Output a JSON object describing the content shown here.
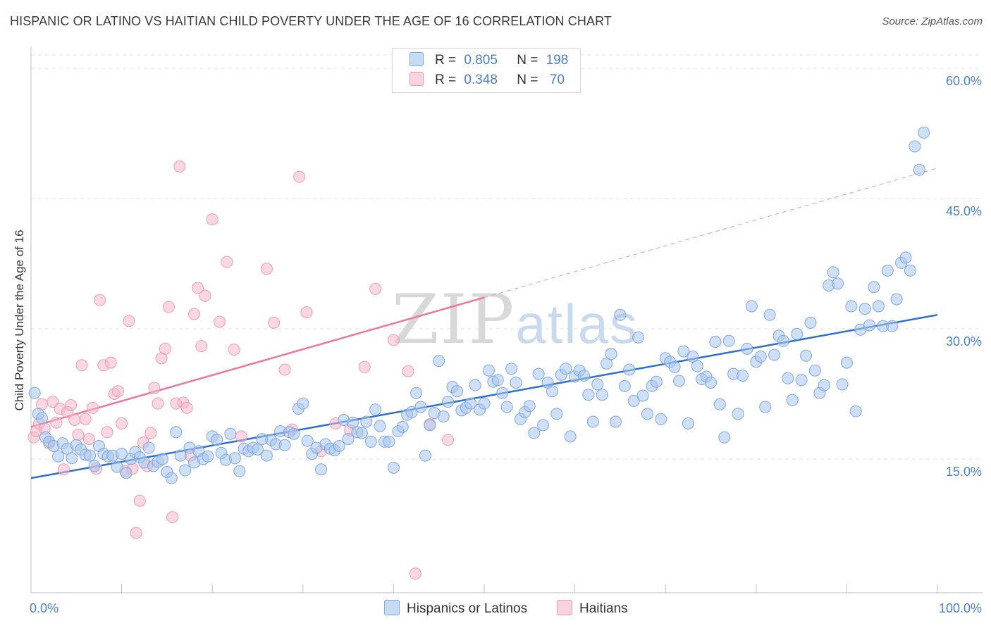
{
  "header": {
    "title": "HISPANIC OR LATINO VS HAITIAN CHILD POVERTY UNDER THE AGE OF 16 CORRELATION CHART",
    "source": "Source: ZipAtlas.com"
  },
  "watermark": {
    "zip": "ZIP",
    "atlas": "atlas"
  },
  "legend": {
    "rows": [
      {
        "r_label": "R =",
        "r_value": "0.805",
        "n_label": "N =",
        "n_value": "198",
        "color": "#a8c6ee"
      },
      {
        "r_label": "R =",
        "r_value": "0.348",
        "n_label": "N =",
        "n_value": " 70",
        "color": "#f6b8ca"
      }
    ]
  },
  "bottom_legend": {
    "series1": "Hispanics or Latinos",
    "series2": "Haitians"
  },
  "chart_data": {
    "type": "scatter",
    "title": "HISPANIC OR LATINO VS HAITIAN CHILD POVERTY UNDER THE AGE OF 16 CORRELATION CHART",
    "xlabel": "",
    "ylabel": "Child Poverty Under the Age of 16",
    "xlim": [
      0,
      100
    ],
    "ylim": [
      0,
      63
    ],
    "x_tick_labels": [
      "0.0%",
      "100.0%"
    ],
    "y_ticks": [
      15,
      30,
      45,
      60
    ],
    "y_tick_labels": [
      "15.0%",
      "30.0%",
      "45.0%",
      "60.0%"
    ],
    "grid": "horizontal dashed",
    "legend_placement": "top-center",
    "series": [
      {
        "name": "Hispanics or Latinos",
        "color": "#4a7fc8",
        "fill": "#a8c6ee",
        "trend": {
          "x": [
            0,
            100
          ],
          "y": [
            12.8,
            31.6
          ],
          "style": "solid"
        },
        "points": [
          [
            0.4,
            22.6
          ],
          [
            0.8,
            20.2
          ],
          [
            1.2,
            19.7
          ],
          [
            1.6,
            17.5
          ],
          [
            2.0,
            17.0
          ],
          [
            2.5,
            16.5
          ],
          [
            3.0,
            15.3
          ],
          [
            3.5,
            16.8
          ],
          [
            4.0,
            16.2
          ],
          [
            4.5,
            15.1
          ],
          [
            5.0,
            16.6
          ],
          [
            5.5,
            16.1
          ],
          [
            6.0,
            15.5
          ],
          [
            6.5,
            15.4
          ],
          [
            7.0,
            14.2
          ],
          [
            7.5,
            16.5
          ],
          [
            8.0,
            15.6
          ],
          [
            8.5,
            15.3
          ],
          [
            9.0,
            15.4
          ],
          [
            9.5,
            14.1
          ],
          [
            10.0,
            15.6
          ],
          [
            10.5,
            13.4
          ],
          [
            11.0,
            15.0
          ],
          [
            11.5,
            15.8
          ],
          [
            12.0,
            15.2
          ],
          [
            12.5,
            14.6
          ],
          [
            13.0,
            16.3
          ],
          [
            13.5,
            14.2
          ],
          [
            14.0,
            14.7
          ],
          [
            14.5,
            15.0
          ],
          [
            15.0,
            13.5
          ],
          [
            15.5,
            12.8
          ],
          [
            16.0,
            18.1
          ],
          [
            16.5,
            15.4
          ],
          [
            17.0,
            13.7
          ],
          [
            17.5,
            16.3
          ],
          [
            18.0,
            14.6
          ],
          [
            18.5,
            15.9
          ],
          [
            19.0,
            15.0
          ],
          [
            19.5,
            15.3
          ],
          [
            20.0,
            17.6
          ],
          [
            20.5,
            17.2
          ],
          [
            21.0,
            15.7
          ],
          [
            21.5,
            14.9
          ],
          [
            22.0,
            17.9
          ],
          [
            22.5,
            15.1
          ],
          [
            23.0,
            13.6
          ],
          [
            23.5,
            16.2
          ],
          [
            24.0,
            15.9
          ],
          [
            24.5,
            16.3
          ],
          [
            25.0,
            16.1
          ],
          [
            25.5,
            17.3
          ],
          [
            26.0,
            15.4
          ],
          [
            26.5,
            17.2
          ],
          [
            27.0,
            16.7
          ],
          [
            27.5,
            18.2
          ],
          [
            28.0,
            16.6
          ],
          [
            28.5,
            18.1
          ],
          [
            29.0,
            17.9
          ],
          [
            29.5,
            20.8
          ],
          [
            30.0,
            21.4
          ],
          [
            30.5,
            17.1
          ],
          [
            31.0,
            15.6
          ],
          [
            31.5,
            16.3
          ],
          [
            32.0,
            13.8
          ],
          [
            32.5,
            16.7
          ],
          [
            33.0,
            16.2
          ],
          [
            33.5,
            16.0
          ],
          [
            34.0,
            16.5
          ],
          [
            34.5,
            19.5
          ],
          [
            35.0,
            17.3
          ],
          [
            35.5,
            19.2
          ],
          [
            36.0,
            18.1
          ],
          [
            36.5,
            18.0
          ],
          [
            37.0,
            19.3
          ],
          [
            37.5,
            17.0
          ],
          [
            38.0,
            20.7
          ],
          [
            38.5,
            18.8
          ],
          [
            39.0,
            17.0
          ],
          [
            39.5,
            17.0
          ],
          [
            40.0,
            14.0
          ],
          [
            40.5,
            18.2
          ],
          [
            41.0,
            18.7
          ],
          [
            41.5,
            20.1
          ],
          [
            42.0,
            20.4
          ],
          [
            42.5,
            22.6
          ],
          [
            43.0,
            21.0
          ],
          [
            43.5,
            15.4
          ],
          [
            44.0,
            18.9
          ],
          [
            44.5,
            20.3
          ],
          [
            45.0,
            26.3
          ],
          [
            45.5,
            19.9
          ],
          [
            46.0,
            21.6
          ],
          [
            46.5,
            23.3
          ],
          [
            47.0,
            22.8
          ],
          [
            47.5,
            20.6
          ],
          [
            48.0,
            20.9
          ],
          [
            48.5,
            21.4
          ],
          [
            49.0,
            23.5
          ],
          [
            49.5,
            20.7
          ],
          [
            50.0,
            21.4
          ],
          [
            50.5,
            25.2
          ],
          [
            51.0,
            23.9
          ],
          [
            51.5,
            24.1
          ],
          [
            52.0,
            22.6
          ],
          [
            52.5,
            21.0
          ],
          [
            53.0,
            25.4
          ],
          [
            53.5,
            23.8
          ],
          [
            54.0,
            19.6
          ],
          [
            54.5,
            20.4
          ],
          [
            55.0,
            21.1
          ],
          [
            55.5,
            18.0
          ],
          [
            56.0,
            24.8
          ],
          [
            56.5,
            18.9
          ],
          [
            57.0,
            23.8
          ],
          [
            57.5,
            22.8
          ],
          [
            58.0,
            20.2
          ],
          [
            58.5,
            24.7
          ],
          [
            59.0,
            25.4
          ],
          [
            59.5,
            17.6
          ],
          [
            60.0,
            24.5
          ],
          [
            60.5,
            25.2
          ],
          [
            61.0,
            24.6
          ],
          [
            61.5,
            22.4
          ],
          [
            62.0,
            19.3
          ],
          [
            62.5,
            23.6
          ],
          [
            63.0,
            22.4
          ],
          [
            63.5,
            26.0
          ],
          [
            64.0,
            27.1
          ],
          [
            64.5,
            19.3
          ],
          [
            65.0,
            31.6
          ],
          [
            65.5,
            23.4
          ],
          [
            66.0,
            25.3
          ],
          [
            66.5,
            21.7
          ],
          [
            67.0,
            29.0
          ],
          [
            67.5,
            22.3
          ],
          [
            68.0,
            20.2
          ],
          [
            68.5,
            23.4
          ],
          [
            69.0,
            23.9
          ],
          [
            69.5,
            19.6
          ],
          [
            70.0,
            26.6
          ],
          [
            70.5,
            26.2
          ],
          [
            71.0,
            25.6
          ],
          [
            71.5,
            24.0
          ],
          [
            72.0,
            27.4
          ],
          [
            72.5,
            19.1
          ],
          [
            73.0,
            26.8
          ],
          [
            73.5,
            25.7
          ],
          [
            74.0,
            24.2
          ],
          [
            74.5,
            24.5
          ],
          [
            75.0,
            23.8
          ],
          [
            75.5,
            28.5
          ],
          [
            76.0,
            21.3
          ],
          [
            76.5,
            17.5
          ],
          [
            77.0,
            28.6
          ],
          [
            77.5,
            24.8
          ],
          [
            78.0,
            20.2
          ],
          [
            78.5,
            24.6
          ],
          [
            79.0,
            27.7
          ],
          [
            79.5,
            32.6
          ],
          [
            80.0,
            26.2
          ],
          [
            80.5,
            26.8
          ],
          [
            81.0,
            21.0
          ],
          [
            81.5,
            31.6
          ],
          [
            82.0,
            27.0
          ],
          [
            82.5,
            29.2
          ],
          [
            83.0,
            28.6
          ],
          [
            83.5,
            24.3
          ],
          [
            84.0,
            21.8
          ],
          [
            84.5,
            29.4
          ],
          [
            85.0,
            24.1
          ],
          [
            85.5,
            26.9
          ],
          [
            86.0,
            30.7
          ],
          [
            86.5,
            25.2
          ],
          [
            87.0,
            22.6
          ],
          [
            87.5,
            23.5
          ],
          [
            88.0,
            35.0
          ],
          [
            88.5,
            36.5
          ],
          [
            89.0,
            35.2
          ],
          [
            89.5,
            23.6
          ],
          [
            90.0,
            26.1
          ],
          [
            90.5,
            32.6
          ],
          [
            91.0,
            20.5
          ],
          [
            91.5,
            29.9
          ],
          [
            92.0,
            32.3
          ],
          [
            92.5,
            30.4
          ],
          [
            93.0,
            34.8
          ],
          [
            93.5,
            32.6
          ],
          [
            94.0,
            30.3
          ],
          [
            94.5,
            36.7
          ],
          [
            95.0,
            30.3
          ],
          [
            95.5,
            33.4
          ],
          [
            96.0,
            37.6
          ],
          [
            96.5,
            38.2
          ],
          [
            97.0,
            36.7
          ],
          [
            97.5,
            51.0
          ],
          [
            98.0,
            48.3
          ],
          [
            98.5,
            52.6
          ]
        ]
      },
      {
        "name": "Haitians",
        "color": "#e8799b",
        "fill": "#f6b8ca",
        "trend": {
          "x": [
            0,
            50
          ],
          "y": [
            18.7,
            33.6
          ],
          "style": "solid",
          "extended": {
            "x": [
              50,
              100
            ],
            "y": [
              33.6,
              48.5
            ],
            "style": "dashed"
          }
        },
        "points": [
          [
            0.3,
            17.5
          ],
          [
            0.6,
            18.2
          ],
          [
            0.9,
            19.1
          ],
          [
            1.2,
            21.3
          ],
          [
            1.5,
            18.5
          ],
          [
            2.0,
            16.8
          ],
          [
            2.4,
            21.6
          ],
          [
            2.8,
            19.2
          ],
          [
            3.2,
            20.8
          ],
          [
            3.6,
            13.8
          ],
          [
            4.0,
            20.4
          ],
          [
            4.4,
            21.2
          ],
          [
            4.8,
            19.5
          ],
          [
            5.2,
            17.8
          ],
          [
            5.6,
            25.8
          ],
          [
            6.0,
            19.6
          ],
          [
            6.4,
            17.3
          ],
          [
            6.8,
            20.9
          ],
          [
            7.2,
            13.9
          ],
          [
            7.6,
            33.3
          ],
          [
            8.0,
            25.8
          ],
          [
            8.4,
            18.1
          ],
          [
            8.8,
            26.1
          ],
          [
            9.2,
            22.5
          ],
          [
            9.6,
            22.8
          ],
          [
            10.0,
            19.1
          ],
          [
            10.4,
            13.6
          ],
          [
            10.8,
            30.9
          ],
          [
            11.2,
            13.9
          ],
          [
            11.6,
            6.5
          ],
          [
            12.0,
            10.2
          ],
          [
            12.4,
            16.9
          ],
          [
            12.8,
            14.2
          ],
          [
            13.2,
            18.0
          ],
          [
            13.6,
            23.2
          ],
          [
            14.0,
            21.4
          ],
          [
            14.4,
            26.6
          ],
          [
            14.8,
            27.7
          ],
          [
            15.2,
            32.5
          ],
          [
            15.6,
            8.3
          ],
          [
            16.0,
            21.4
          ],
          [
            16.4,
            48.7
          ],
          [
            16.8,
            21.5
          ],
          [
            17.2,
            20.9
          ],
          [
            17.6,
            15.4
          ],
          [
            18.0,
            31.7
          ],
          [
            18.4,
            34.7
          ],
          [
            18.8,
            28.0
          ],
          [
            19.2,
            33.8
          ],
          [
            20.0,
            42.6
          ],
          [
            20.8,
            30.8
          ],
          [
            21.6,
            37.7
          ],
          [
            22.4,
            27.6
          ],
          [
            23.2,
            17.6
          ],
          [
            26.0,
            36.9
          ],
          [
            26.8,
            30.7
          ],
          [
            28.0,
            25.3
          ],
          [
            28.8,
            18.4
          ],
          [
            29.6,
            47.5
          ],
          [
            30.4,
            31.9
          ],
          [
            32.0,
            15.9
          ],
          [
            33.6,
            19.1
          ],
          [
            35.2,
            18.3
          ],
          [
            36.8,
            25.6
          ],
          [
            38.0,
            34.6
          ],
          [
            40.0,
            28.7
          ],
          [
            41.6,
            25.1
          ],
          [
            42.4,
            1.8
          ],
          [
            44.0,
            19.0
          ],
          [
            46.0,
            17.2
          ]
        ]
      }
    ]
  }
}
